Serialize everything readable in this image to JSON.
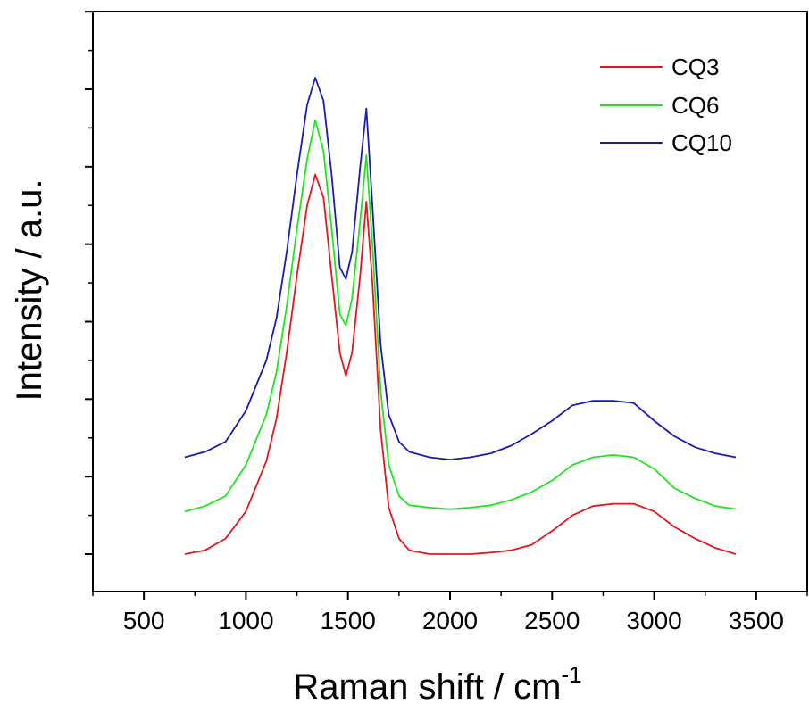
{
  "chart_data": {
    "type": "line",
    "title": "",
    "xlabel": "Raman shift / cm",
    "xlabel_superscript": "-1",
    "ylabel": "Intensity / a.u.",
    "xlim": [
      250,
      3750
    ],
    "ylim": [
      0,
      7.5
    ],
    "x_ticks": [
      500,
      1000,
      1500,
      2000,
      2500,
      3000,
      3500
    ],
    "x_tick_labels": [
      "500",
      "1000",
      "1500",
      "2000",
      "2500",
      "3000",
      "3500"
    ],
    "y_tick_labels_shown": false,
    "legend_position": "top-right",
    "series": [
      {
        "name": "CQ3",
        "color": "#e8141c",
        "x": [
          700,
          800,
          900,
          1000,
          1100,
          1150,
          1200,
          1250,
          1300,
          1340,
          1380,
          1420,
          1460,
          1490,
          1520,
          1560,
          1590,
          1620,
          1660,
          1700,
          1750,
          1800,
          1900,
          2000,
          2100,
          2200,
          2300,
          2400,
          2500,
          2600,
          2700,
          2800,
          2900,
          3000,
          3100,
          3200,
          3300,
          3400
        ],
        "y": [
          0.0,
          0.05,
          0.2,
          0.55,
          1.2,
          1.75,
          2.6,
          3.6,
          4.5,
          4.9,
          4.6,
          3.6,
          2.6,
          2.3,
          2.6,
          3.6,
          4.55,
          3.5,
          1.6,
          0.6,
          0.2,
          0.05,
          0.0,
          0.0,
          0.0,
          0.02,
          0.05,
          0.12,
          0.3,
          0.5,
          0.62,
          0.65,
          0.65,
          0.55,
          0.35,
          0.2,
          0.08,
          0.0
        ]
      },
      {
        "name": "CQ6",
        "color": "#1ee61e",
        "x": [
          700,
          800,
          900,
          1000,
          1100,
          1150,
          1200,
          1250,
          1300,
          1340,
          1380,
          1420,
          1460,
          1490,
          1520,
          1560,
          1590,
          1620,
          1660,
          1700,
          1750,
          1800,
          1900,
          2000,
          2100,
          2200,
          2300,
          2400,
          2500,
          2600,
          2700,
          2800,
          2900,
          3000,
          3100,
          3200,
          3300,
          3400
        ],
        "y": [
          0.55,
          0.62,
          0.75,
          1.15,
          1.8,
          2.35,
          3.2,
          4.2,
          5.1,
          5.6,
          5.2,
          4.2,
          3.1,
          2.95,
          3.3,
          4.3,
          5.15,
          4.0,
          2.1,
          1.15,
          0.75,
          0.63,
          0.6,
          0.58,
          0.6,
          0.63,
          0.7,
          0.8,
          0.95,
          1.15,
          1.25,
          1.28,
          1.25,
          1.1,
          0.85,
          0.72,
          0.62,
          0.58
        ]
      },
      {
        "name": "CQ10",
        "color": "#1a1ab4",
        "x": [
          700,
          800,
          900,
          1000,
          1100,
          1150,
          1200,
          1250,
          1300,
          1340,
          1380,
          1420,
          1460,
          1490,
          1520,
          1560,
          1590,
          1620,
          1660,
          1700,
          1750,
          1800,
          1900,
          2000,
          2100,
          2200,
          2300,
          2400,
          2500,
          2600,
          2700,
          2800,
          2900,
          3000,
          3100,
          3200,
          3300,
          3400
        ],
        "y": [
          1.25,
          1.32,
          1.45,
          1.85,
          2.5,
          3.05,
          3.9,
          4.9,
          5.8,
          6.15,
          5.85,
          4.9,
          3.7,
          3.55,
          3.9,
          5.0,
          5.75,
          4.5,
          2.7,
          1.8,
          1.45,
          1.32,
          1.25,
          1.22,
          1.25,
          1.3,
          1.4,
          1.55,
          1.72,
          1.92,
          1.98,
          1.98,
          1.95,
          1.72,
          1.52,
          1.38,
          1.3,
          1.25
        ]
      }
    ]
  }
}
